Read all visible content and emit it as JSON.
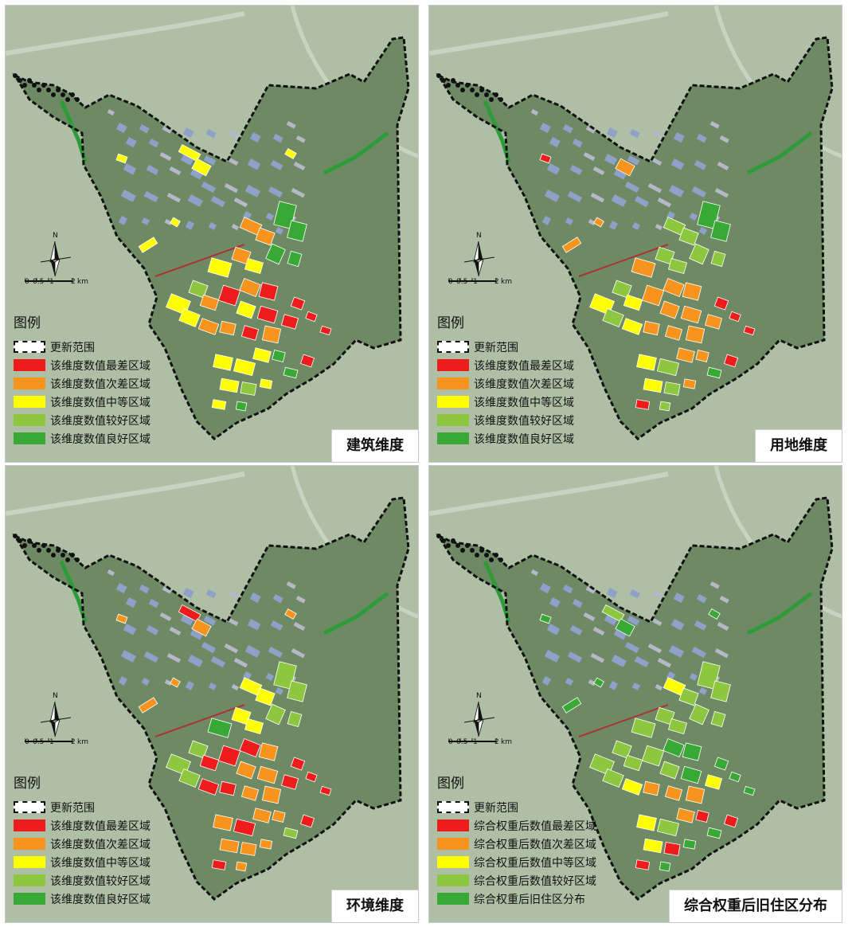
{
  "legend_common": {
    "title": "图例",
    "boundary_label": "更新范围",
    "scale": {
      "north": "N",
      "ticks": [
        "0",
        "0.5",
        "1",
        "2"
      ],
      "unit": "km"
    }
  },
  "class_colors": [
    "#ee1c1c",
    "#f7941d",
    "#ffff00",
    "#8dc63f",
    "#39a935"
  ],
  "panels": [
    {
      "title": "建筑维度",
      "legend": [
        "该维度数值最差区域",
        "该维度数值次差区域",
        "该维度数值中等区域",
        "该维度数值较好区域",
        "该维度数值良好区域"
      ]
    },
    {
      "title": "用地维度",
      "legend": [
        "该维度数值最差区域",
        "该维度数值次差区域",
        "该维度数值中等区域",
        "该维度数值较好区域",
        "该维度数值良好区域"
      ]
    },
    {
      "title": "环境维度",
      "legend": [
        "该维度数值最差区域",
        "该维度数值次差区域",
        "该维度数值中等区域",
        "该维度数值较好区域",
        "该维度数值良好区域"
      ]
    },
    {
      "title": "综合权重后旧住区分布",
      "legend": [
        "综合权重后数值最差区域",
        "综合权重后数值次差区域",
        "综合权重后数值中等区域",
        "综合权重后数值较好区域",
        "综合权重后旧住区分布"
      ]
    }
  ]
}
